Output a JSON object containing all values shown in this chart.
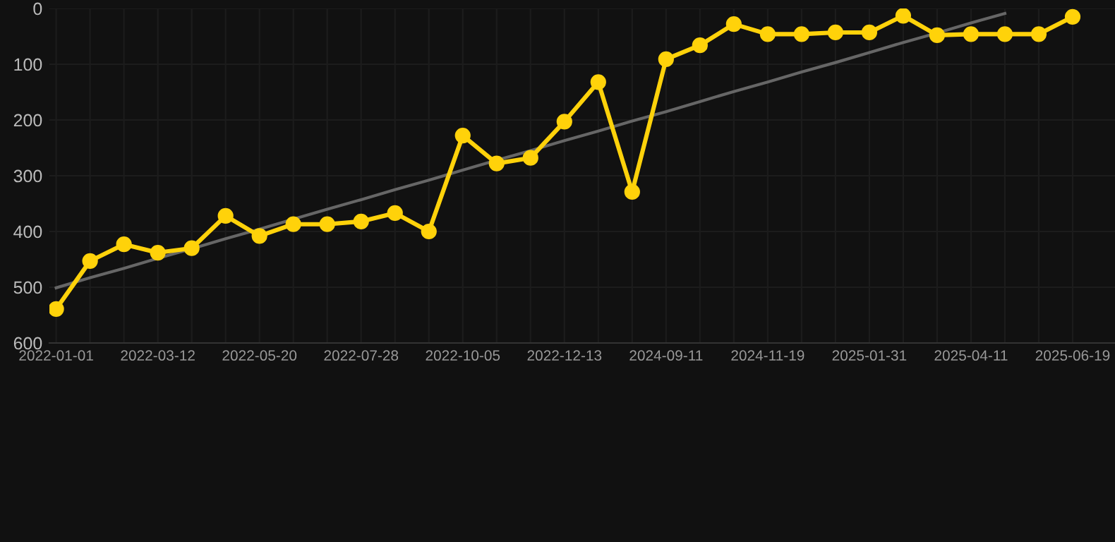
{
  "chart_data": {
    "type": "line",
    "categories": [
      "2022-01-01",
      null,
      null,
      "2022-03-12",
      null,
      null,
      "2022-05-20",
      null,
      null,
      "2022-07-28",
      null,
      null,
      "2022-10-05",
      null,
      null,
      "2022-12-13",
      null,
      null,
      "2024-09-11",
      null,
      null,
      "2024-11-19",
      null,
      null,
      "2025-01-31",
      null,
      null,
      "2025-04-11",
      null,
      null,
      "2025-06-19"
    ],
    "series": [
      {
        "color": "#ffd20a",
        "values": [
          539,
          453,
          423,
          438,
          430,
          372,
          408,
          387,
          387,
          382,
          367,
          400,
          228,
          278,
          268,
          203,
          132,
          329,
          91,
          66,
          28,
          46,
          46,
          43,
          43,
          13,
          48,
          46,
          46,
          46,
          15
        ]
      },
      {
        "type": "line",
        "color": "#666666",
        "marker": "none",
        "values": [
          501,
          483,
          466,
          448,
          431,
          413,
          396,
          378,
          360,
          343,
          325,
          308,
          290,
          272,
          255,
          237,
          220,
          202,
          185,
          167,
          149,
          132,
          114,
          97,
          79,
          61,
          44,
          26,
          9,
          null,
          null
        ]
      }
    ],
    "ylim": [
      600,
      0
    ],
    "yticks": [
      0,
      100,
      200,
      300,
      400,
      500,
      600
    ],
    "grid": true,
    "marker": "circle",
    "line_style": "solid"
  }
}
